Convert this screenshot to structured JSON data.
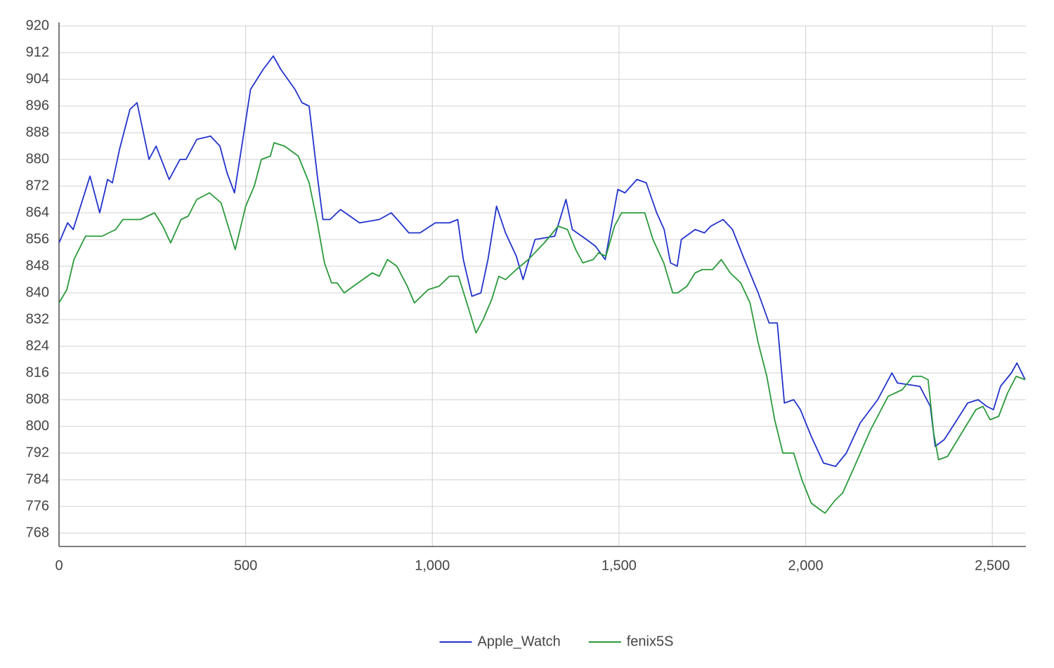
{
  "chart_data": {
    "type": "line",
    "xlim": [
      0,
      2590
    ],
    "ylim": [
      764,
      920
    ],
    "xticks": [
      0,
      500,
      {
        "value": 1000,
        "label": "1,000"
      },
      {
        "value": 1500,
        "label": "1,500"
      },
      {
        "value": 2000,
        "label": "2,000"
      },
      {
        "value": 2500,
        "label": "2,500"
      }
    ],
    "yticks": [
      768,
      776,
      784,
      792,
      800,
      808,
      816,
      824,
      832,
      840,
      848,
      856,
      864,
      872,
      880,
      888,
      896,
      904,
      912,
      920
    ],
    "grid": true,
    "legend": "bottom",
    "series": [
      {
        "name": "Apple_Watch",
        "color": "#2233cc",
        "x": [
          0,
          23,
          38,
          83,
          109,
          130,
          143,
          162,
          190,
          209,
          241,
          260,
          295,
          324,
          340,
          369,
          406,
          431,
          450,
          470,
          491,
          513,
          547,
          574,
          594,
          632,
          651,
          670,
          692,
          707,
          726,
          754,
          805,
          858,
          890,
          914,
          937,
          967,
          1008,
          1046,
          1068,
          1083,
          1106,
          1130,
          1149,
          1172,
          1196,
          1225,
          1243,
          1275,
          1328,
          1358,
          1375,
          1413,
          1437,
          1463,
          1497,
          1516,
          1548,
          1573,
          1601,
          1621,
          1638,
          1656,
          1667,
          1704,
          1729,
          1746,
          1779,
          1804,
          1836,
          1873,
          1902,
          1924,
          1943,
          1968,
          1986,
          2015,
          2048,
          2080,
          2109,
          2146,
          2193,
          2231,
          2246,
          2306,
          2334,
          2347,
          2371,
          2400,
          2434,
          2462,
          2485,
          2503,
          2522,
          2551,
          2566,
          2588
        ],
        "values": [
          855,
          861,
          859,
          875,
          864,
          874,
          873,
          883,
          895,
          897,
          880,
          884,
          874,
          880,
          880,
          886,
          887,
          884,
          876,
          870,
          885,
          901,
          907,
          911,
          907,
          901,
          897,
          896,
          875,
          862,
          862,
          865,
          861,
          862,
          864,
          861,
          858,
          858,
          861,
          861,
          862,
          850,
          839,
          840,
          850,
          866,
          858,
          851,
          844,
          856,
          857,
          868,
          859,
          856,
          854,
          850,
          871,
          870,
          874,
          873,
          864,
          859,
          849,
          848,
          856,
          859,
          858,
          860,
          862,
          859,
          850,
          840,
          831,
          831,
          807,
          808,
          805,
          797,
          789,
          788,
          792,
          801,
          808,
          816,
          813,
          812,
          806,
          794,
          796,
          801,
          807,
          808,
          806,
          805,
          812,
          816,
          819,
          814
        ]
      },
      {
        "name": "fenix5S",
        "color": "#2a9a3a",
        "x": [
          0,
          21,
          40,
          71,
          115,
          152,
          171,
          218,
          256,
          278,
          299,
          327,
          346,
          369,
          403,
          434,
          453,
          472,
          500,
          523,
          542,
          566,
          576,
          604,
          641,
          670,
          692,
          711,
          730,
          745,
          764,
          801,
          839,
          858,
          880,
          905,
          933,
          952,
          989,
          1018,
          1046,
          1070,
          1098,
          1117,
          1136,
          1159,
          1178,
          1196,
          1225,
          1257,
          1300,
          1337,
          1362,
          1384,
          1403,
          1431,
          1445,
          1465,
          1488,
          1507,
          1544,
          1569,
          1591,
          1620,
          1644,
          1657,
          1682,
          1704,
          1723,
          1751,
          1774,
          1798,
          1826,
          1851,
          1873,
          1896,
          1917,
          1939,
          1968,
          1990,
          2015,
          2039,
          2052,
          2080,
          2099,
          2127,
          2174,
          2221,
          2259,
          2287,
          2310,
          2328,
          2343,
          2356,
          2380,
          2418,
          2456,
          2475,
          2494,
          2517,
          2541,
          2564,
          2588
        ],
        "values": [
          837,
          841,
          850,
          857,
          857,
          859,
          862,
          862,
          864,
          860,
          855,
          862,
          863,
          868,
          870,
          867,
          860,
          853,
          866,
          872,
          880,
          881,
          885,
          884,
          881,
          873,
          861,
          849,
          843,
          843,
          840,
          843,
          846,
          845,
          850,
          848,
          842,
          837,
          841,
          842,
          845,
          845,
          835,
          828,
          832,
          838,
          845,
          844,
          847,
          850,
          855,
          860,
          859,
          853,
          849,
          850,
          852,
          851,
          860,
          864,
          864,
          864,
          856,
          849,
          840,
          840,
          842,
          846,
          847,
          847,
          850,
          846,
          843,
          837,
          825,
          815,
          802,
          792,
          792,
          784,
          777,
          775,
          774,
          778,
          780,
          787,
          799,
          809,
          811,
          815,
          815,
          814,
          798,
          790,
          791,
          798,
          805,
          806,
          802,
          803,
          810,
          815,
          814
        ]
      }
    ]
  }
}
